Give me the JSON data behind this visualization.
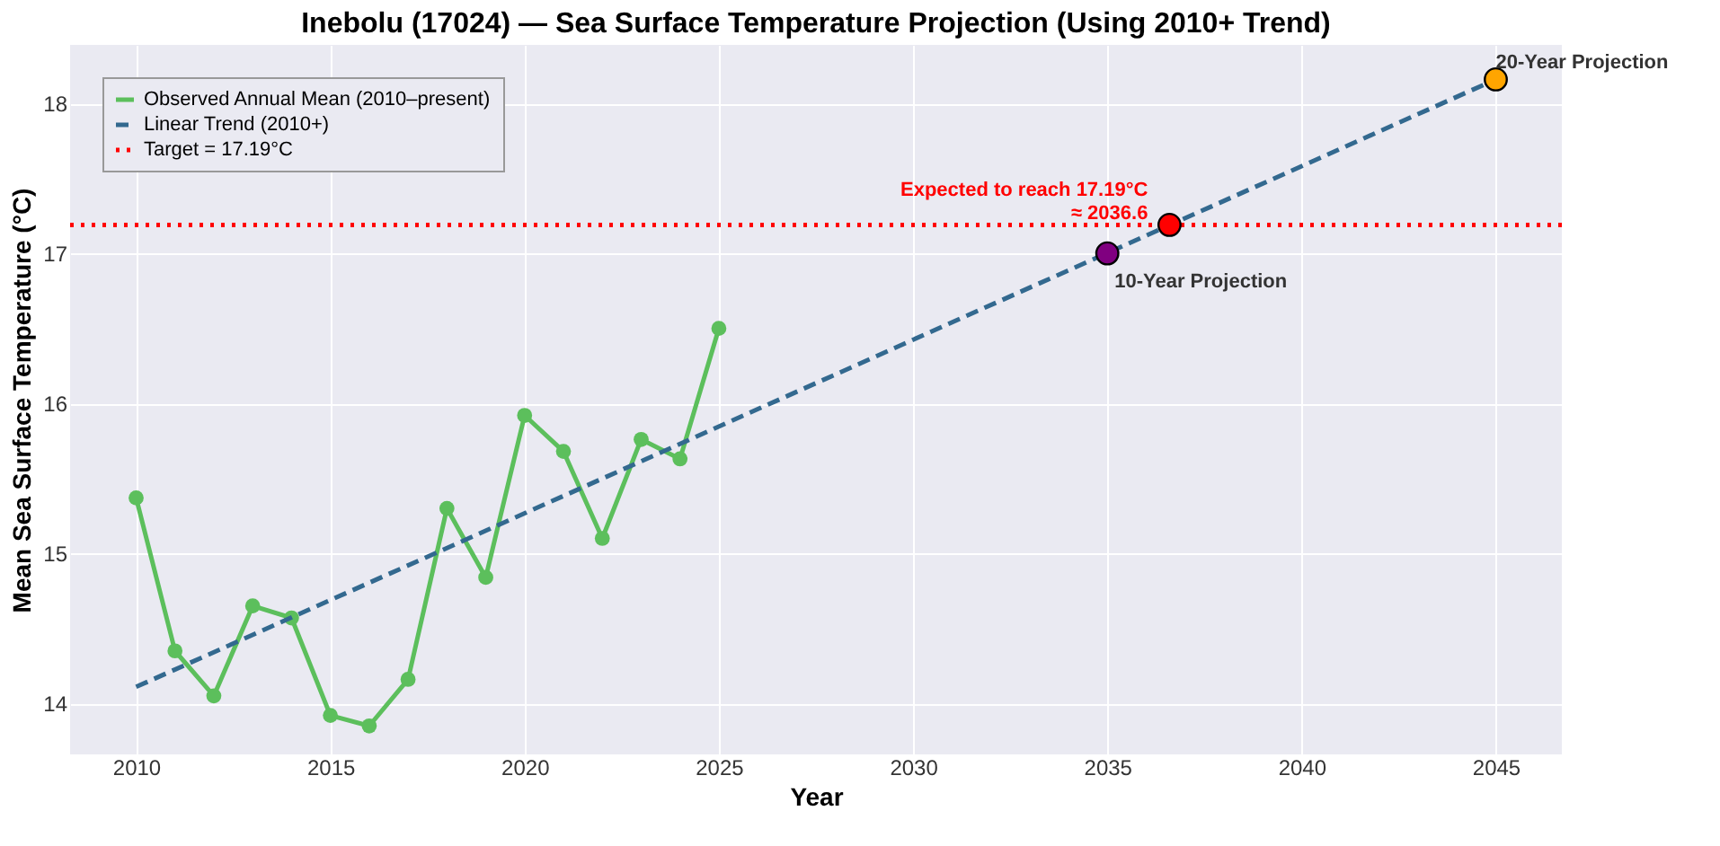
{
  "chart_data": {
    "type": "line",
    "title": "Inebolu (17024) — Sea Surface Temperature Projection (Using 2010+ Trend)",
    "xlabel": "Year",
    "ylabel": "Mean Sea Surface Temperature (°C)",
    "xlim": [
      2008.3,
      2046.7
    ],
    "xticks": [
      2010,
      2015,
      2020,
      2025,
      2030,
      2035,
      2040,
      2045
    ],
    "ylim": [
      13.66,
      18.39
    ],
    "yticks": [
      14,
      15,
      16,
      17,
      18
    ],
    "grid": true,
    "legend": "top left",
    "series": [
      {
        "name": "Observed Annual Mean (2010–present)",
        "color": "#5cbf5c",
        "marker": "circle",
        "line_style": "solid",
        "x": [
          2010,
          2011,
          2012,
          2013,
          2014,
          2015,
          2016,
          2017,
          2018,
          2019,
          2020,
          2021,
          2022,
          2023,
          2024,
          2025
        ],
        "values": [
          15.37,
          14.35,
          14.05,
          14.65,
          14.57,
          13.92,
          13.85,
          14.16,
          15.3,
          14.84,
          15.92,
          15.68,
          15.1,
          15.76,
          15.63,
          16.5
        ]
      },
      {
        "name": "Linear Trend (2010+)",
        "color": "#33698f",
        "marker": "none",
        "line_style": "dashed",
        "x": [
          2010,
          2045
        ],
        "values": [
          14.11,
          18.16
        ]
      },
      {
        "name": "10-Year Projection",
        "type": "scatter",
        "color": "#800080",
        "marker": "circle",
        "x": [
          2035
        ],
        "values": [
          17.0
        ]
      },
      {
        "type": "scatter",
        "color": "#ff0000",
        "marker": "circle",
        "x": [
          2036.6
        ],
        "values": [
          17.19
        ]
      },
      {
        "name": "20-Year Projection",
        "type": "scatter",
        "color": "#ffa500",
        "marker": "circle",
        "x": [
          2045
        ],
        "values": [
          18.16
        ]
      }
    ],
    "ref_lines": [
      {
        "axis": "y",
        "value": 17.19,
        "label": "Target = 17.19°C",
        "color": "#ff0000",
        "line_style": "dotted"
      }
    ],
    "annotations": [
      {
        "text": "Expected to reach 17.19°C\n≈ 2036.6",
        "x": 2036.6,
        "y": 17.19
      }
    ]
  }
}
